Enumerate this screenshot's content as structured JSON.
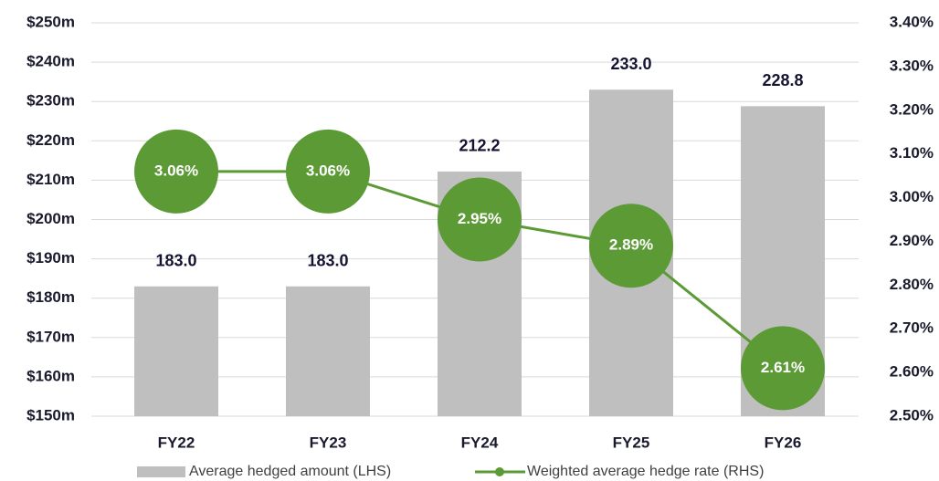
{
  "chart_data": {
    "type": "bar",
    "categories": [
      "FY22",
      "FY23",
      "FY24",
      "FY25",
      "FY26"
    ],
    "series": [
      {
        "name": "Average hedged amount (LHS)",
        "type": "bar",
        "color": "#bfbfbf",
        "values": [
          183.0,
          183.0,
          212.2,
          233.0,
          228.8
        ],
        "value_labels": [
          "183.0",
          "183.0",
          "212.2",
          "233.0",
          "228.8"
        ]
      },
      {
        "name": "Weighted average hedge rate (RHS)",
        "type": "line",
        "axis": "y2",
        "color": "#5b9a35",
        "values": [
          3.06,
          3.06,
          2.95,
          2.89,
          2.61
        ],
        "value_labels": [
          "3.06%",
          "3.06%",
          "2.95%",
          "2.89%",
          "2.61%"
        ]
      }
    ],
    "ylim": [
      150,
      250
    ],
    "yticks": [
      {
        "value": 150,
        "label": "$150m"
      },
      {
        "value": 160,
        "label": "$160m"
      },
      {
        "value": 170,
        "label": "$170m"
      },
      {
        "value": 180,
        "label": "$180m"
      },
      {
        "value": 190,
        "label": "$190m"
      },
      {
        "value": 200,
        "label": "$200m"
      },
      {
        "value": 210,
        "label": "$210m"
      },
      {
        "value": 220,
        "label": "$220m"
      },
      {
        "value": 230,
        "label": "$230m"
      },
      {
        "value": 240,
        "label": "$240m"
      },
      {
        "value": 250,
        "label": "$250m"
      }
    ],
    "y2lim": [
      2.5,
      3.4
    ],
    "y2ticks": [
      {
        "value": 2.5,
        "label": "2.50%"
      },
      {
        "value": 2.6,
        "label": "2.60%"
      },
      {
        "value": 2.7,
        "label": "2.70%"
      },
      {
        "value": 2.8,
        "label": "2.80%"
      },
      {
        "value": 2.9,
        "label": "2.90%"
      },
      {
        "value": 3.0,
        "label": "3.00%"
      },
      {
        "value": 3.1,
        "label": "3.10%"
      },
      {
        "value": 3.2,
        "label": "3.20%"
      },
      {
        "value": 3.3,
        "label": "3.30%"
      },
      {
        "value": 3.4,
        "label": "3.40%"
      }
    ],
    "grid": true,
    "legend": "bottom"
  }
}
